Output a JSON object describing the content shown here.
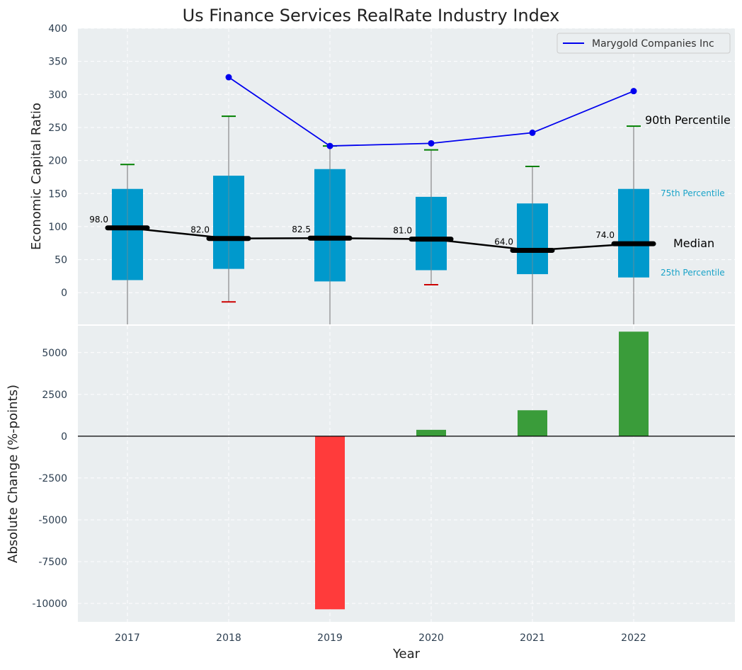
{
  "chart_data": {
    "title": "Us Finance Services RealRate Industry Index",
    "xlabel": "Year",
    "years": [
      "2017",
      "2018",
      "2019",
      "2020",
      "2021",
      "2022"
    ],
    "colors": {
      "box": "#0099cc",
      "whisker": "#888888",
      "upper_cap": "#008000",
      "lower_cap": "#cc0000",
      "median": "#000000",
      "company": "#0000ee",
      "positive_bar": "#3a9c3a",
      "negative_bar": "#ff3b3b",
      "panel_bg": "#eaeef0",
      "percentile_label": "#1aa3c8",
      "axis_text": "#2c3e50"
    },
    "top": {
      "type": "box",
      "ylabel": "Economic Capital Ratio",
      "ylim": [
        -48,
        400
      ],
      "yticks": [
        0,
        50,
        100,
        150,
        200,
        250,
        300,
        350,
        400
      ],
      "boxes": [
        {
          "year": "2017",
          "p25": 19,
          "p75": 157,
          "median": 98,
          "upper": 194,
          "lower": null,
          "median_label": "98.0"
        },
        {
          "year": "2018",
          "p25": 36,
          "p75": 177,
          "median": 82,
          "upper": 267,
          "lower": -14,
          "median_label": "82.0"
        },
        {
          "year": "2019",
          "p25": 17,
          "p75": 187,
          "median": 82.5,
          "upper": 222,
          "lower": null,
          "median_label": "82.5"
        },
        {
          "year": "2020",
          "p25": 34,
          "p75": 145,
          "median": 81,
          "upper": 216,
          "lower": 12,
          "median_label": "81.0"
        },
        {
          "year": "2021",
          "p25": 28,
          "p75": 135,
          "median": 64,
          "upper": 191,
          "lower": null,
          "median_label": "64.0"
        },
        {
          "year": "2022",
          "p25": 23,
          "p75": 157,
          "median": 74,
          "upper": 252,
          "lower": null,
          "median_label": "74.0"
        }
      ],
      "company": {
        "name": "Marygold Companies Inc",
        "points": [
          {
            "year": "2018",
            "value": 326
          },
          {
            "year": "2019",
            "value": 222
          },
          {
            "year": "2020",
            "value": 226
          },
          {
            "year": "2021",
            "value": 242
          },
          {
            "year": "2022",
            "value": 305
          }
        ]
      },
      "annotations": {
        "p90": "90th Percentile",
        "p75": "75th Percentile",
        "median": "Median",
        "p25": "25th Percentile"
      },
      "legend_position": "top-right"
    },
    "bottom": {
      "type": "bar",
      "ylabel": "Absolute Change (%-points)",
      "ylim": [
        -11100,
        6600
      ],
      "yticks": [
        -10000,
        -7500,
        -5000,
        -2500,
        0,
        2500,
        5000
      ],
      "values": [
        {
          "year": "2017",
          "value": 0
        },
        {
          "year": "2018",
          "value": 0
        },
        {
          "year": "2019",
          "value": -10350
        },
        {
          "year": "2020",
          "value": 380
        },
        {
          "year": "2021",
          "value": 1550
        },
        {
          "year": "2022",
          "value": 6250
        }
      ]
    }
  }
}
